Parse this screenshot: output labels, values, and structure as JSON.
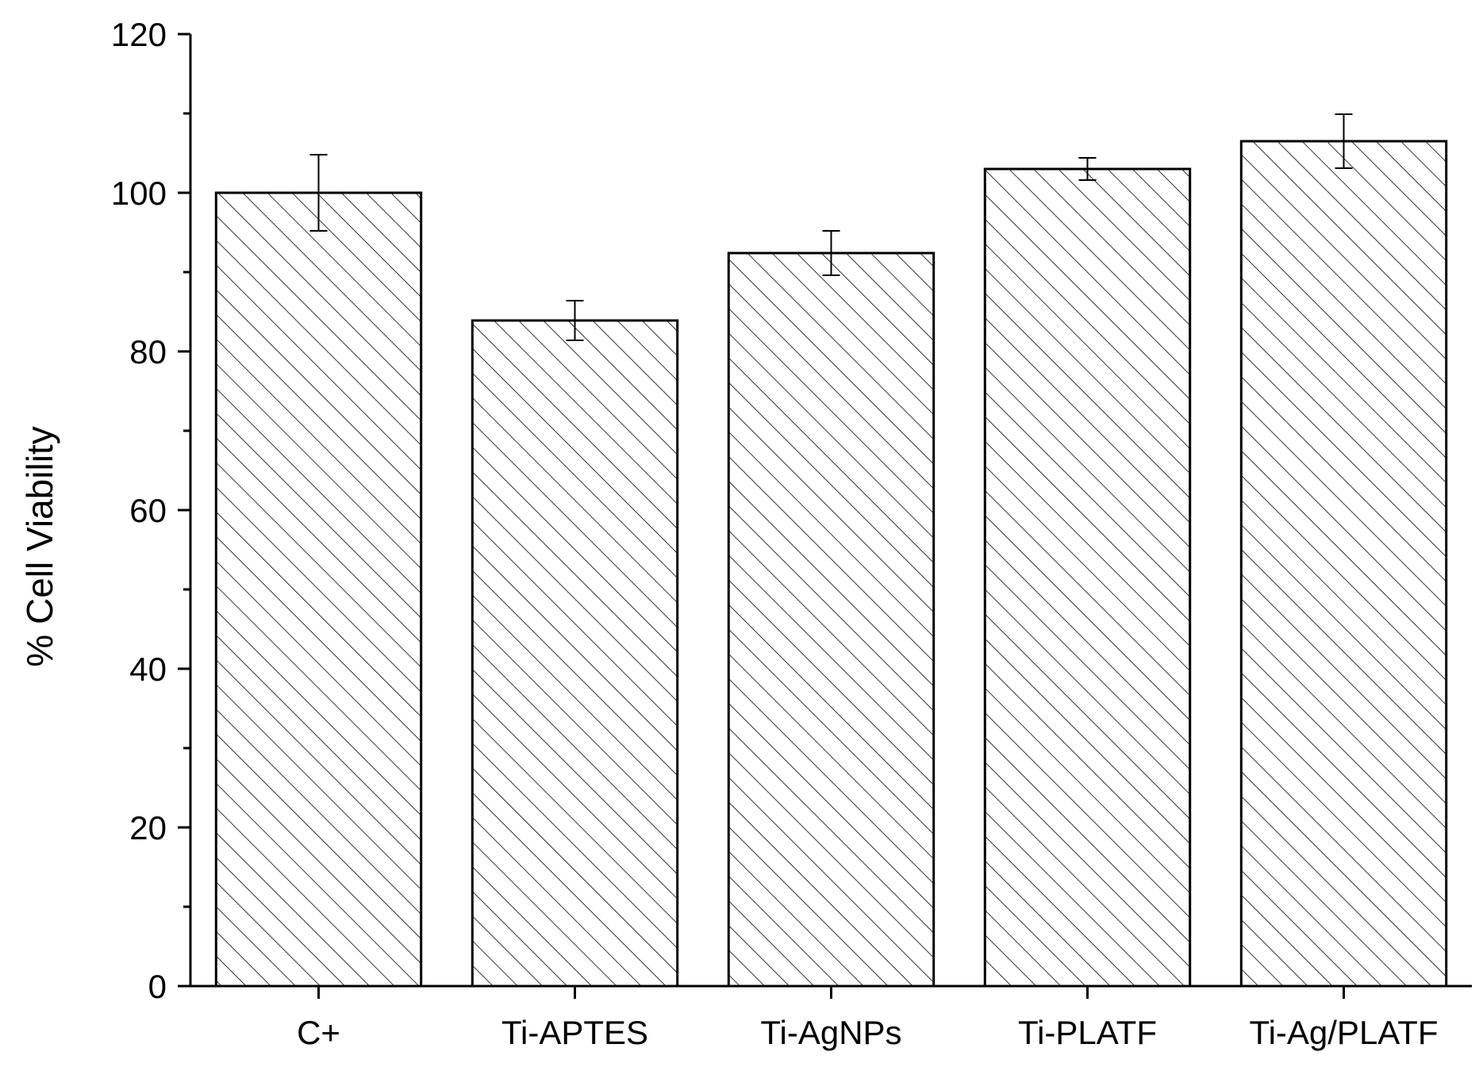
{
  "chart_data": {
    "type": "bar",
    "title": "",
    "xlabel": "",
    "ylabel": "% Cell Viability",
    "ylim": [
      0,
      120
    ],
    "yticks": [
      0,
      20,
      40,
      60,
      80,
      100,
      120
    ],
    "grid": false,
    "legend": "none",
    "categories": [
      "C+",
      "Ti-APTES",
      "Ti-AgNPs",
      "Ti-PLATF",
      "Ti-Ag/PLATF"
    ],
    "values": [
      100,
      83.9,
      92.4,
      103,
      106.5
    ],
    "errors": [
      4.8,
      2.5,
      2.8,
      1.4,
      3.4
    ],
    "bar_fill": "hatched",
    "colors": {
      "bar_stroke": "#000000",
      "hatch": "#000000",
      "background": "#ffffff",
      "axis": "#000000"
    }
  }
}
